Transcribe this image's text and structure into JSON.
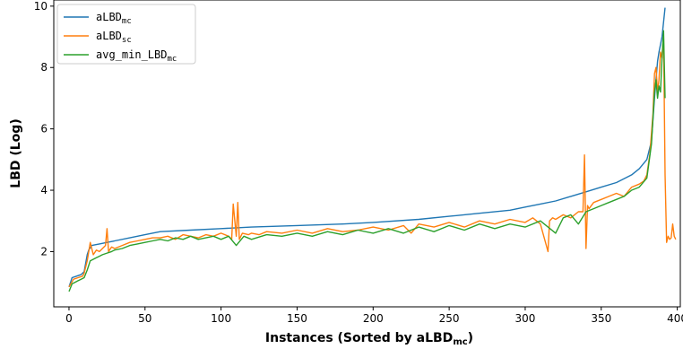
{
  "chart_data": {
    "type": "line",
    "xlabel": "Instances (Sorted  by aLBD",
    "xlabel_sub": "mc",
    "xlabel_close": ")",
    "ylabel": "LBD (Log)",
    "xlim": [
      -10,
      402
    ],
    "ylim": [
      0.2,
      10.2
    ],
    "xticks": [
      0,
      50,
      100,
      150,
      200,
      250,
      300,
      350,
      400
    ],
    "yticks": [
      2,
      4,
      6,
      8,
      10
    ],
    "grid": false,
    "legend_position": "top-left",
    "series": [
      {
        "name": "aLBD",
        "name_sub": "mc",
        "color": "#1f77b4",
        "x": [
          0,
          2,
          5,
          8,
          10,
          12,
          13,
          15,
          20,
          25,
          30,
          40,
          50,
          60,
          80,
          100,
          120,
          150,
          180,
          200,
          230,
          250,
          270,
          290,
          300,
          310,
          320,
          330,
          340,
          350,
          360,
          370,
          375,
          380,
          383,
          385,
          387,
          388,
          390,
          392
        ],
        "y": [
          0.85,
          1.15,
          1.2,
          1.25,
          1.35,
          1.9,
          2.05,
          2.2,
          2.25,
          2.3,
          2.35,
          2.45,
          2.55,
          2.65,
          2.7,
          2.75,
          2.8,
          2.85,
          2.9,
          2.95,
          3.05,
          3.15,
          3.25,
          3.35,
          3.45,
          3.55,
          3.65,
          3.8,
          3.95,
          4.1,
          4.25,
          4.5,
          4.7,
          5.0,
          5.6,
          7.0,
          8.2,
          8.5,
          9.0,
          9.95
        ]
      },
      {
        "name": "aLBD",
        "name_sub": "sc",
        "color": "#ff7f0e",
        "x": [
          0,
          3,
          6,
          9,
          10,
          12,
          14,
          16,
          18,
          20,
          22,
          24,
          25,
          26,
          28,
          30,
          35,
          40,
          45,
          50,
          55,
          60,
          65,
          70,
          75,
          80,
          85,
          90,
          95,
          100,
          105,
          107,
          108,
          110,
          111,
          112,
          114,
          118,
          120,
          125,
          130,
          140,
          150,
          160,
          170,
          180,
          190,
          200,
          210,
          220,
          225,
          230,
          240,
          250,
          260,
          270,
          280,
          290,
          300,
          305,
          310,
          315,
          316,
          318,
          320,
          325,
          330,
          335,
          338,
          339,
          340,
          341,
          342,
          345,
          350,
          355,
          360,
          365,
          370,
          375,
          378,
          380,
          382,
          384,
          385,
          386,
          387,
          388,
          389,
          390,
          391,
          392,
          393,
          394,
          395,
          396,
          397,
          398,
          399
        ],
        "y": [
          0.85,
          1.1,
          1.15,
          1.2,
          1.3,
          1.7,
          2.3,
          1.9,
          2.05,
          2.0,
          2.1,
          2.2,
          2.75,
          2.0,
          2.15,
          2.1,
          2.2,
          2.3,
          2.35,
          2.4,
          2.45,
          2.45,
          2.5,
          2.4,
          2.55,
          2.5,
          2.45,
          2.55,
          2.5,
          2.6,
          2.5,
          2.4,
          3.55,
          2.5,
          3.6,
          2.4,
          2.6,
          2.55,
          2.6,
          2.55,
          2.65,
          2.6,
          2.7,
          2.6,
          2.75,
          2.65,
          2.7,
          2.8,
          2.7,
          2.85,
          2.6,
          2.9,
          2.8,
          2.95,
          2.8,
          3.0,
          2.9,
          3.05,
          2.95,
          3.1,
          2.9,
          2.0,
          3.0,
          3.1,
          3.05,
          3.2,
          3.1,
          3.3,
          3.3,
          5.15,
          2.1,
          3.5,
          3.4,
          3.6,
          3.7,
          3.8,
          3.9,
          3.8,
          4.1,
          4.2,
          4.3,
          4.5,
          5.2,
          6.5,
          7.8,
          8.0,
          7.2,
          7.6,
          8.5,
          8.3,
          9.05,
          4.5,
          2.3,
          2.5,
          2.4,
          2.45,
          2.9,
          2.5,
          2.4
        ]
      },
      {
        "name": "avg_min_LBD",
        "name_sub": "mc",
        "color": "#2ca02c",
        "x": [
          0,
          2,
          4,
          6,
          8,
          10,
          12,
          14,
          16,
          18,
          20,
          22,
          25,
          28,
          30,
          35,
          40,
          45,
          50,
          55,
          60,
          65,
          70,
          75,
          80,
          85,
          90,
          95,
          100,
          105,
          110,
          115,
          120,
          130,
          140,
          150,
          160,
          170,
          180,
          190,
          200,
          210,
          220,
          230,
          240,
          250,
          260,
          270,
          280,
          290,
          300,
          310,
          320,
          325,
          330,
          335,
          340,
          345,
          350,
          355,
          360,
          365,
          370,
          375,
          380,
          383,
          385,
          386,
          387,
          388,
          389,
          390,
          391,
          392
        ],
        "y": [
          0.7,
          0.95,
          1.0,
          1.05,
          1.1,
          1.15,
          1.4,
          1.7,
          1.75,
          1.8,
          1.85,
          1.9,
          1.95,
          2.0,
          2.05,
          2.1,
          2.2,
          2.25,
          2.3,
          2.35,
          2.4,
          2.35,
          2.45,
          2.4,
          2.5,
          2.4,
          2.45,
          2.5,
          2.4,
          2.5,
          2.2,
          2.5,
          2.4,
          2.55,
          2.5,
          2.6,
          2.5,
          2.65,
          2.55,
          2.7,
          2.6,
          2.75,
          2.6,
          2.8,
          2.65,
          2.85,
          2.7,
          2.9,
          2.75,
          2.9,
          2.8,
          3.0,
          2.6,
          3.1,
          3.2,
          2.9,
          3.3,
          3.4,
          3.5,
          3.6,
          3.7,
          3.8,
          4.0,
          4.1,
          4.4,
          5.5,
          7.2,
          7.6,
          7.0,
          7.4,
          7.2,
          8.3,
          9.2,
          7.0
        ]
      }
    ]
  }
}
